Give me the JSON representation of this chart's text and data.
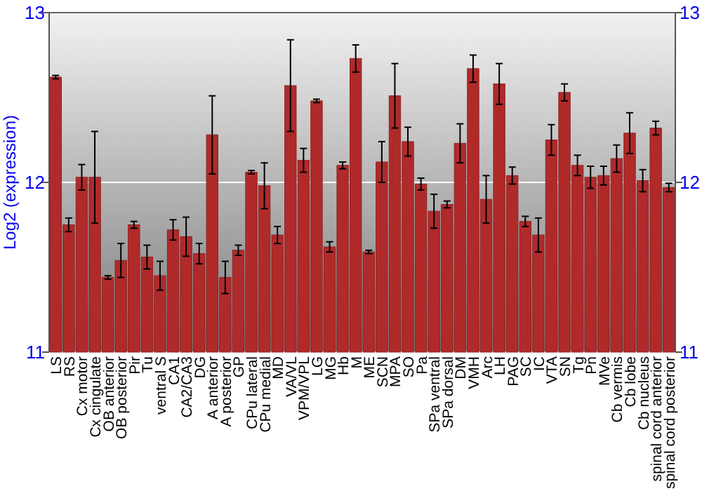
{
  "chart_data": {
    "type": "bar",
    "ylabel": "Log2 (expression)",
    "categories": [
      "LS",
      "RS",
      "Cx motor",
      "Cx cingulate",
      "OB anterior",
      "OB posterior",
      "Pir",
      "Tu",
      "ventral S",
      "CA1",
      "CA2/CA3",
      "DG",
      "A anterior",
      "A posterior",
      "GP",
      "CPu lateral",
      "CPu medial",
      "MD",
      "VA/VL",
      "VPM/VPL",
      "LG",
      "MG",
      "Hb",
      "M",
      "ME",
      "SCN",
      "MPA",
      "SO",
      "Pa",
      "SPa ventral",
      "SPa dorsal",
      "DM",
      "VMH",
      "Arc",
      "LH",
      "PAG",
      "SC",
      "IC",
      "VTA",
      "SN",
      "Tg",
      "Pn",
      "MVe",
      "Cb vermis",
      "Cb lobe",
      "Cb nucleus",
      "spinal cord anterior",
      "spinal cord posterior"
    ],
    "values": [
      12.62,
      11.75,
      12.03,
      12.03,
      11.44,
      11.54,
      11.75,
      11.56,
      11.45,
      11.72,
      11.68,
      11.58,
      12.28,
      11.44,
      11.6,
      12.06,
      11.98,
      11.69,
      12.57,
      12.13,
      12.48,
      11.62,
      12.1,
      12.73,
      11.59,
      12.12,
      12.51,
      12.24,
      11.99,
      11.83,
      11.87,
      12.23,
      12.67,
      11.9,
      12.58,
      12.04,
      11.77,
      11.69,
      12.25,
      12.53,
      12.1,
      12.03,
      12.04,
      12.14,
      12.29,
      12.01,
      12.32,
      11.97
    ],
    "errors": [
      0.01,
      0.04,
      0.075,
      0.27,
      0.01,
      0.1,
      0.02,
      0.07,
      0.085,
      0.06,
      0.115,
      0.06,
      0.23,
      0.095,
      0.03,
      0.01,
      0.135,
      0.05,
      0.27,
      0.07,
      0.01,
      0.03,
      0.02,
      0.08,
      0.01,
      0.12,
      0.19,
      0.085,
      0.035,
      0.1,
      0.02,
      0.115,
      0.08,
      0.14,
      0.12,
      0.05,
      0.03,
      0.1,
      0.09,
      0.05,
      0.06,
      0.065,
      0.055,
      0.08,
      0.12,
      0.065,
      0.04,
      0.025
    ],
    "color": "#b02a2a",
    "ylim": [
      11,
      13
    ],
    "yticks": [
      11,
      12,
      13
    ],
    "y2lim": [
      11,
      13
    ],
    "y2ticks": [
      11,
      12,
      13
    ],
    "grid": "y"
  }
}
